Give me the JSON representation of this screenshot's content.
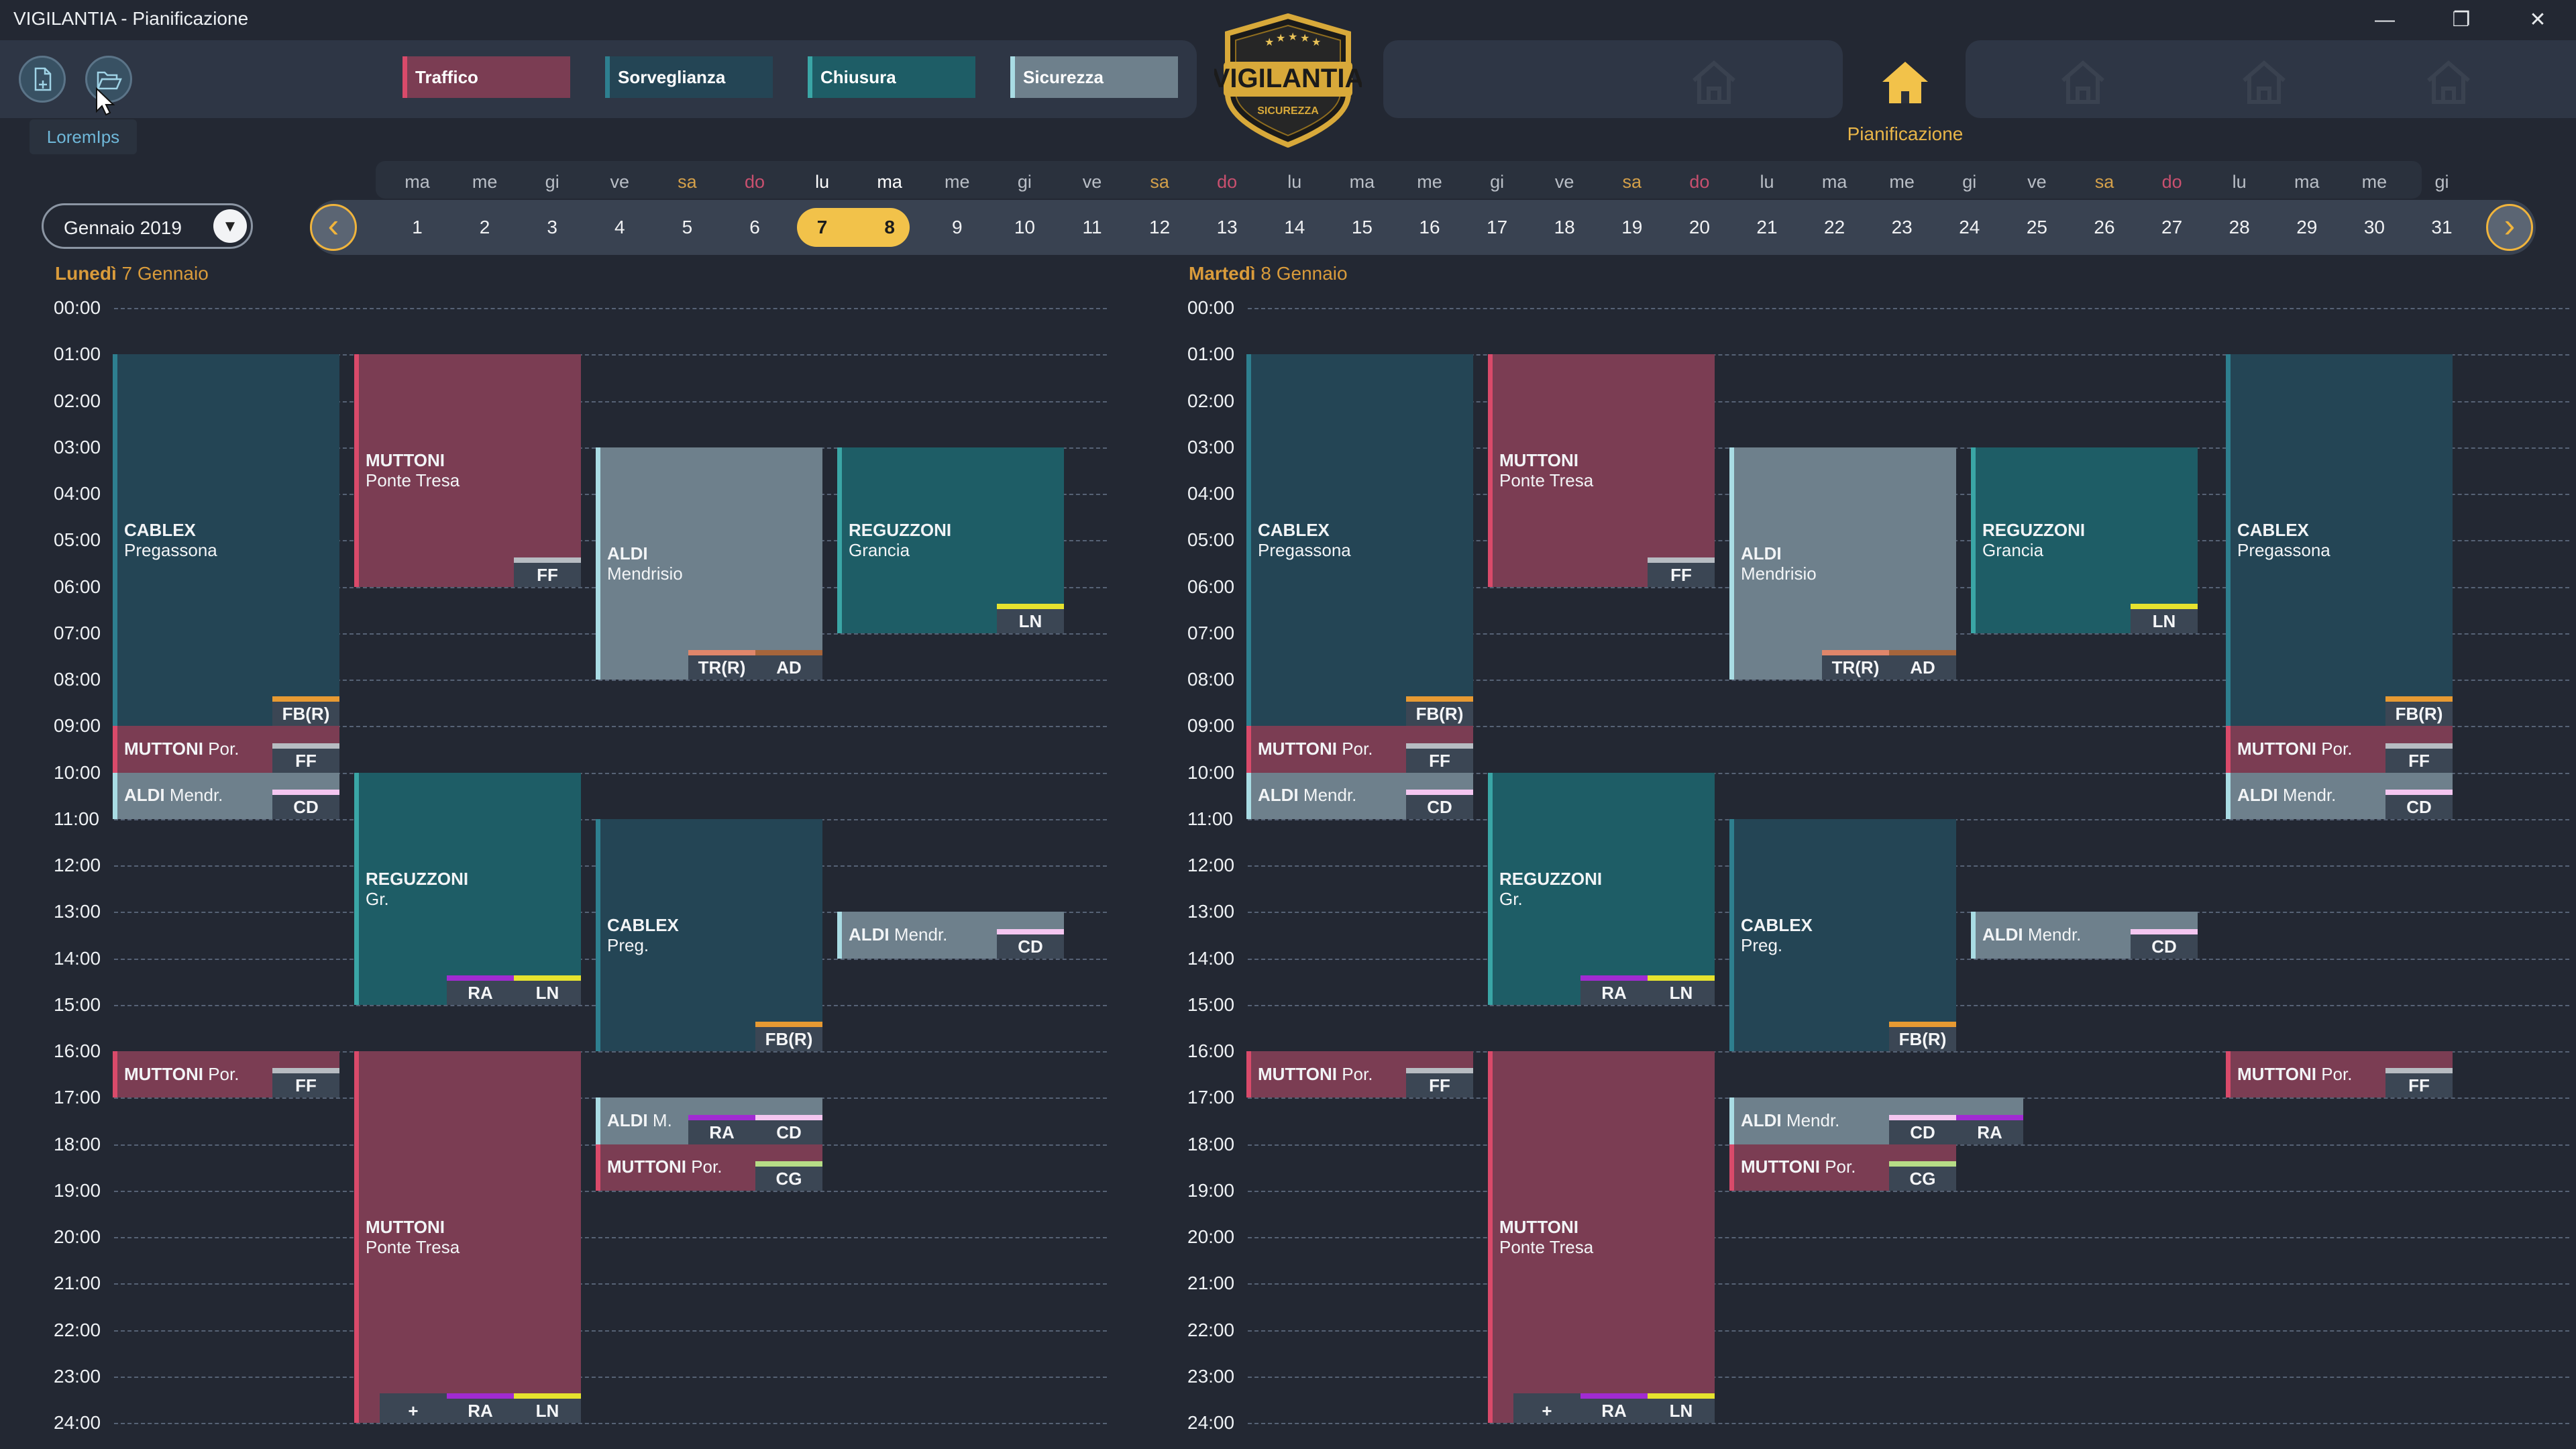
{
  "window": {
    "title": "VIGILANTIA - Pianificazione",
    "minimize": "—",
    "restore": "❐",
    "close": "✕"
  },
  "toolbar": {
    "tooltip": "LoremIps",
    "new_icon": "new-document-icon",
    "open_icon": "open-folder-icon"
  },
  "categories": [
    {
      "label": "Traffico",
      "color": "#7b3d53",
      "accent": "#d94a6a"
    },
    {
      "label": "Sorveglianza",
      "color": "#244555",
      "accent": "#2e7f8f"
    },
    {
      "label": "Chiusura",
      "color": "#1e5d66",
      "accent": "#3aa6a6"
    },
    {
      "label": "Sicurezza",
      "color": "#6e808c",
      "accent": "#a9dce4"
    }
  ],
  "logo": {
    "main": "VIGILANTIA",
    "sub": "SICUREZZA"
  },
  "nav": {
    "active_label": "Pianificazione"
  },
  "month_select": {
    "value": "Gennaio 2019"
  },
  "calendar": {
    "days": [
      {
        "n": "1",
        "d": "ma"
      },
      {
        "n": "2",
        "d": "me"
      },
      {
        "n": "3",
        "d": "gi"
      },
      {
        "n": "4",
        "d": "ve"
      },
      {
        "n": "5",
        "d": "sa"
      },
      {
        "n": "6",
        "d": "do"
      },
      {
        "n": "7",
        "d": "lu"
      },
      {
        "n": "8",
        "d": "ma"
      },
      {
        "n": "9",
        "d": "me"
      },
      {
        "n": "10",
        "d": "gi"
      },
      {
        "n": "11",
        "d": "ve"
      },
      {
        "n": "12",
        "d": "sa"
      },
      {
        "n": "13",
        "d": "do"
      },
      {
        "n": "14",
        "d": "lu"
      },
      {
        "n": "15",
        "d": "ma"
      },
      {
        "n": "16",
        "d": "me"
      },
      {
        "n": "17",
        "d": "gi"
      },
      {
        "n": "18",
        "d": "ve"
      },
      {
        "n": "19",
        "d": "sa"
      },
      {
        "n": "20",
        "d": "do"
      },
      {
        "n": "21",
        "d": "lu"
      },
      {
        "n": "22",
        "d": "ma"
      },
      {
        "n": "23",
        "d": "me"
      },
      {
        "n": "24",
        "d": "gi"
      },
      {
        "n": "25",
        "d": "ve"
      },
      {
        "n": "26",
        "d": "sa"
      },
      {
        "n": "27",
        "d": "do"
      },
      {
        "n": "28",
        "d": "lu"
      },
      {
        "n": "29",
        "d": "ma"
      },
      {
        "n": "30",
        "d": "me"
      },
      {
        "n": "31",
        "d": "gi"
      }
    ],
    "selected": [
      "7",
      "8"
    ],
    "prev": "‹",
    "next": "›"
  },
  "hours": [
    "00:00",
    "01:00",
    "02:00",
    "03:00",
    "04:00",
    "05:00",
    "06:00",
    "07:00",
    "08:00",
    "09:00",
    "10:00",
    "11:00",
    "12:00",
    "13:00",
    "14:00",
    "15:00",
    "16:00",
    "17:00",
    "18:00",
    "19:00",
    "20:00",
    "21:00",
    "22:00",
    "23:00",
    "24:00"
  ],
  "badge_colors": {
    "FF": "#b7bcc2",
    "FB(R)": "#e79a32",
    "TR(R)": "#e0866a",
    "AD": "#a6653b",
    "LN": "#e6e32e",
    "CD": "#f4c6f0",
    "RA": "#a12bd2",
    "CG": "#b6dc86",
    "+": "#3b4654"
  },
  "days": [
    {
      "title_bold": "Lunedì",
      "title": "7 Gennaio",
      "events": [
        {
          "cat": 1,
          "col": 0,
          "start": 1,
          "end": 9,
          "name": "CABLEX",
          "sub": "Pregassona",
          "badges": [
            "FB(R)"
          ]
        },
        {
          "cat": 0,
          "col": 1,
          "start": 1,
          "end": 6,
          "name": "MUTTONI",
          "sub": "Ponte Tresa",
          "badges": [
            "FF"
          ]
        },
        {
          "cat": 3,
          "col": 2,
          "start": 3,
          "end": 8,
          "name": "ALDI",
          "sub": "Mendrisio",
          "badges": [
            "TR(R)",
            "AD"
          ]
        },
        {
          "cat": 2,
          "col": 3,
          "start": 3,
          "end": 7,
          "name": "REGUZZONI",
          "sub": "Grancia",
          "badges": [
            "LN"
          ]
        },
        {
          "cat": 0,
          "col": 0,
          "start": 9,
          "end": 10,
          "name": "MUTTONI",
          "sub": "Por.",
          "badges": [
            "FF"
          ]
        },
        {
          "cat": 3,
          "col": 0,
          "start": 10,
          "end": 11,
          "name": "ALDI",
          "sub": "Mendr.",
          "badges": [
            "CD"
          ]
        },
        {
          "cat": 2,
          "col": 1,
          "start": 10,
          "end": 15,
          "name": "REGUZZONI",
          "sub": "Gr.",
          "badges": [
            "RA",
            "LN"
          ]
        },
        {
          "cat": 1,
          "col": 2,
          "start": 11,
          "end": 16,
          "name": "CABLEX",
          "sub": "Preg.",
          "badges": [
            "FB(R)"
          ]
        },
        {
          "cat": 3,
          "col": 3,
          "start": 13,
          "end": 14,
          "name": "ALDI",
          "sub": "Mendr.",
          "badges": [
            "CD"
          ]
        },
        {
          "cat": 0,
          "col": 0,
          "start": 16,
          "end": 17,
          "name": "MUTTONI",
          "sub": "Por.",
          "badges": [
            "FF"
          ]
        },
        {
          "cat": 0,
          "col": 1,
          "start": 16,
          "end": 24,
          "name": "MUTTONI",
          "sub": "Ponte Tresa",
          "badges": [
            "+",
            "RA",
            "LN"
          ]
        },
        {
          "cat": 3,
          "col": 2,
          "start": 17,
          "end": 18,
          "name": "ALDI",
          "sub": "M.",
          "badges": [
            "RA",
            "CD"
          ]
        },
        {
          "cat": 0,
          "col": 2,
          "start": 18,
          "end": 19,
          "name": "MUTTONI",
          "sub": "Por.",
          "badges": [
            "CG"
          ]
        }
      ]
    },
    {
      "title_bold": "Martedì",
      "title": "8 Gennaio",
      "events": [
        {
          "cat": 1,
          "col": 0,
          "start": 1,
          "end": 9,
          "name": "CABLEX",
          "sub": "Pregassona",
          "badges": [
            "FB(R)"
          ]
        },
        {
          "cat": 0,
          "col": 1,
          "start": 1,
          "end": 6,
          "name": "MUTTONI",
          "sub": "Ponte Tresa",
          "badges": [
            "FF"
          ]
        },
        {
          "cat": 3,
          "col": 2,
          "start": 3,
          "end": 8,
          "name": "ALDI",
          "sub": "Mendrisio",
          "badges": [
            "TR(R)",
            "AD"
          ]
        },
        {
          "cat": 2,
          "col": 3,
          "start": 3,
          "end": 7,
          "name": "REGUZZONI",
          "sub": "Grancia",
          "badges": [
            "LN"
          ]
        },
        {
          "cat": 1,
          "col": 4,
          "start": 1,
          "end": 9,
          "name": "CABLEX",
          "sub": "Pregassona",
          "badges": [
            "FB(R)"
          ]
        },
        {
          "cat": 0,
          "col": 0,
          "start": 9,
          "end": 10,
          "name": "MUTTONI",
          "sub": "Por.",
          "badges": [
            "FF"
          ]
        },
        {
          "cat": 3,
          "col": 0,
          "start": 10,
          "end": 11,
          "name": "ALDI",
          "sub": "Mendr.",
          "badges": [
            "CD"
          ]
        },
        {
          "cat": 0,
          "col": 4,
          "start": 9,
          "end": 10,
          "name": "MUTTONI",
          "sub": "Por.",
          "badges": [
            "FF"
          ]
        },
        {
          "cat": 3,
          "col": 4,
          "start": 10,
          "end": 11,
          "name": "ALDI",
          "sub": "Mendr.",
          "badges": [
            "CD"
          ]
        },
        {
          "cat": 2,
          "col": 1,
          "start": 10,
          "end": 15,
          "name": "REGUZZONI",
          "sub": "Gr.",
          "badges": [
            "RA",
            "LN"
          ]
        },
        {
          "cat": 1,
          "col": 2,
          "start": 11,
          "end": 16,
          "name": "CABLEX",
          "sub": "Preg.",
          "badges": [
            "FB(R)"
          ]
        },
        {
          "cat": 3,
          "col": 3,
          "start": 13,
          "end": 14,
          "name": "ALDI",
          "sub": "Mendr.",
          "badges": [
            "CD"
          ]
        },
        {
          "cat": 0,
          "col": 0,
          "start": 16,
          "end": 17,
          "name": "MUTTONI",
          "sub": "Por.",
          "badges": [
            "FF"
          ]
        },
        {
          "cat": 0,
          "col": 1,
          "start": 16,
          "end": 24,
          "name": "MUTTONI",
          "sub": "Ponte Tresa",
          "badges": [
            "+",
            "RA",
            "LN"
          ]
        },
        {
          "cat": 0,
          "col": 4,
          "start": 16,
          "end": 17,
          "name": "MUTTONI",
          "sub": "Por.",
          "badges": [
            "FF"
          ]
        },
        {
          "cat": 3,
          "col": 2,
          "start": 17,
          "end": 18,
          "name": "ALDI",
          "sub": "Mendr.",
          "badges": [
            "CD",
            "RA"
          ],
          "wide": true
        },
        {
          "cat": 0,
          "col": 2,
          "start": 18,
          "end": 19,
          "name": "MUTTONI",
          "sub": "Por.",
          "badges": [
            "CG"
          ]
        }
      ]
    }
  ]
}
